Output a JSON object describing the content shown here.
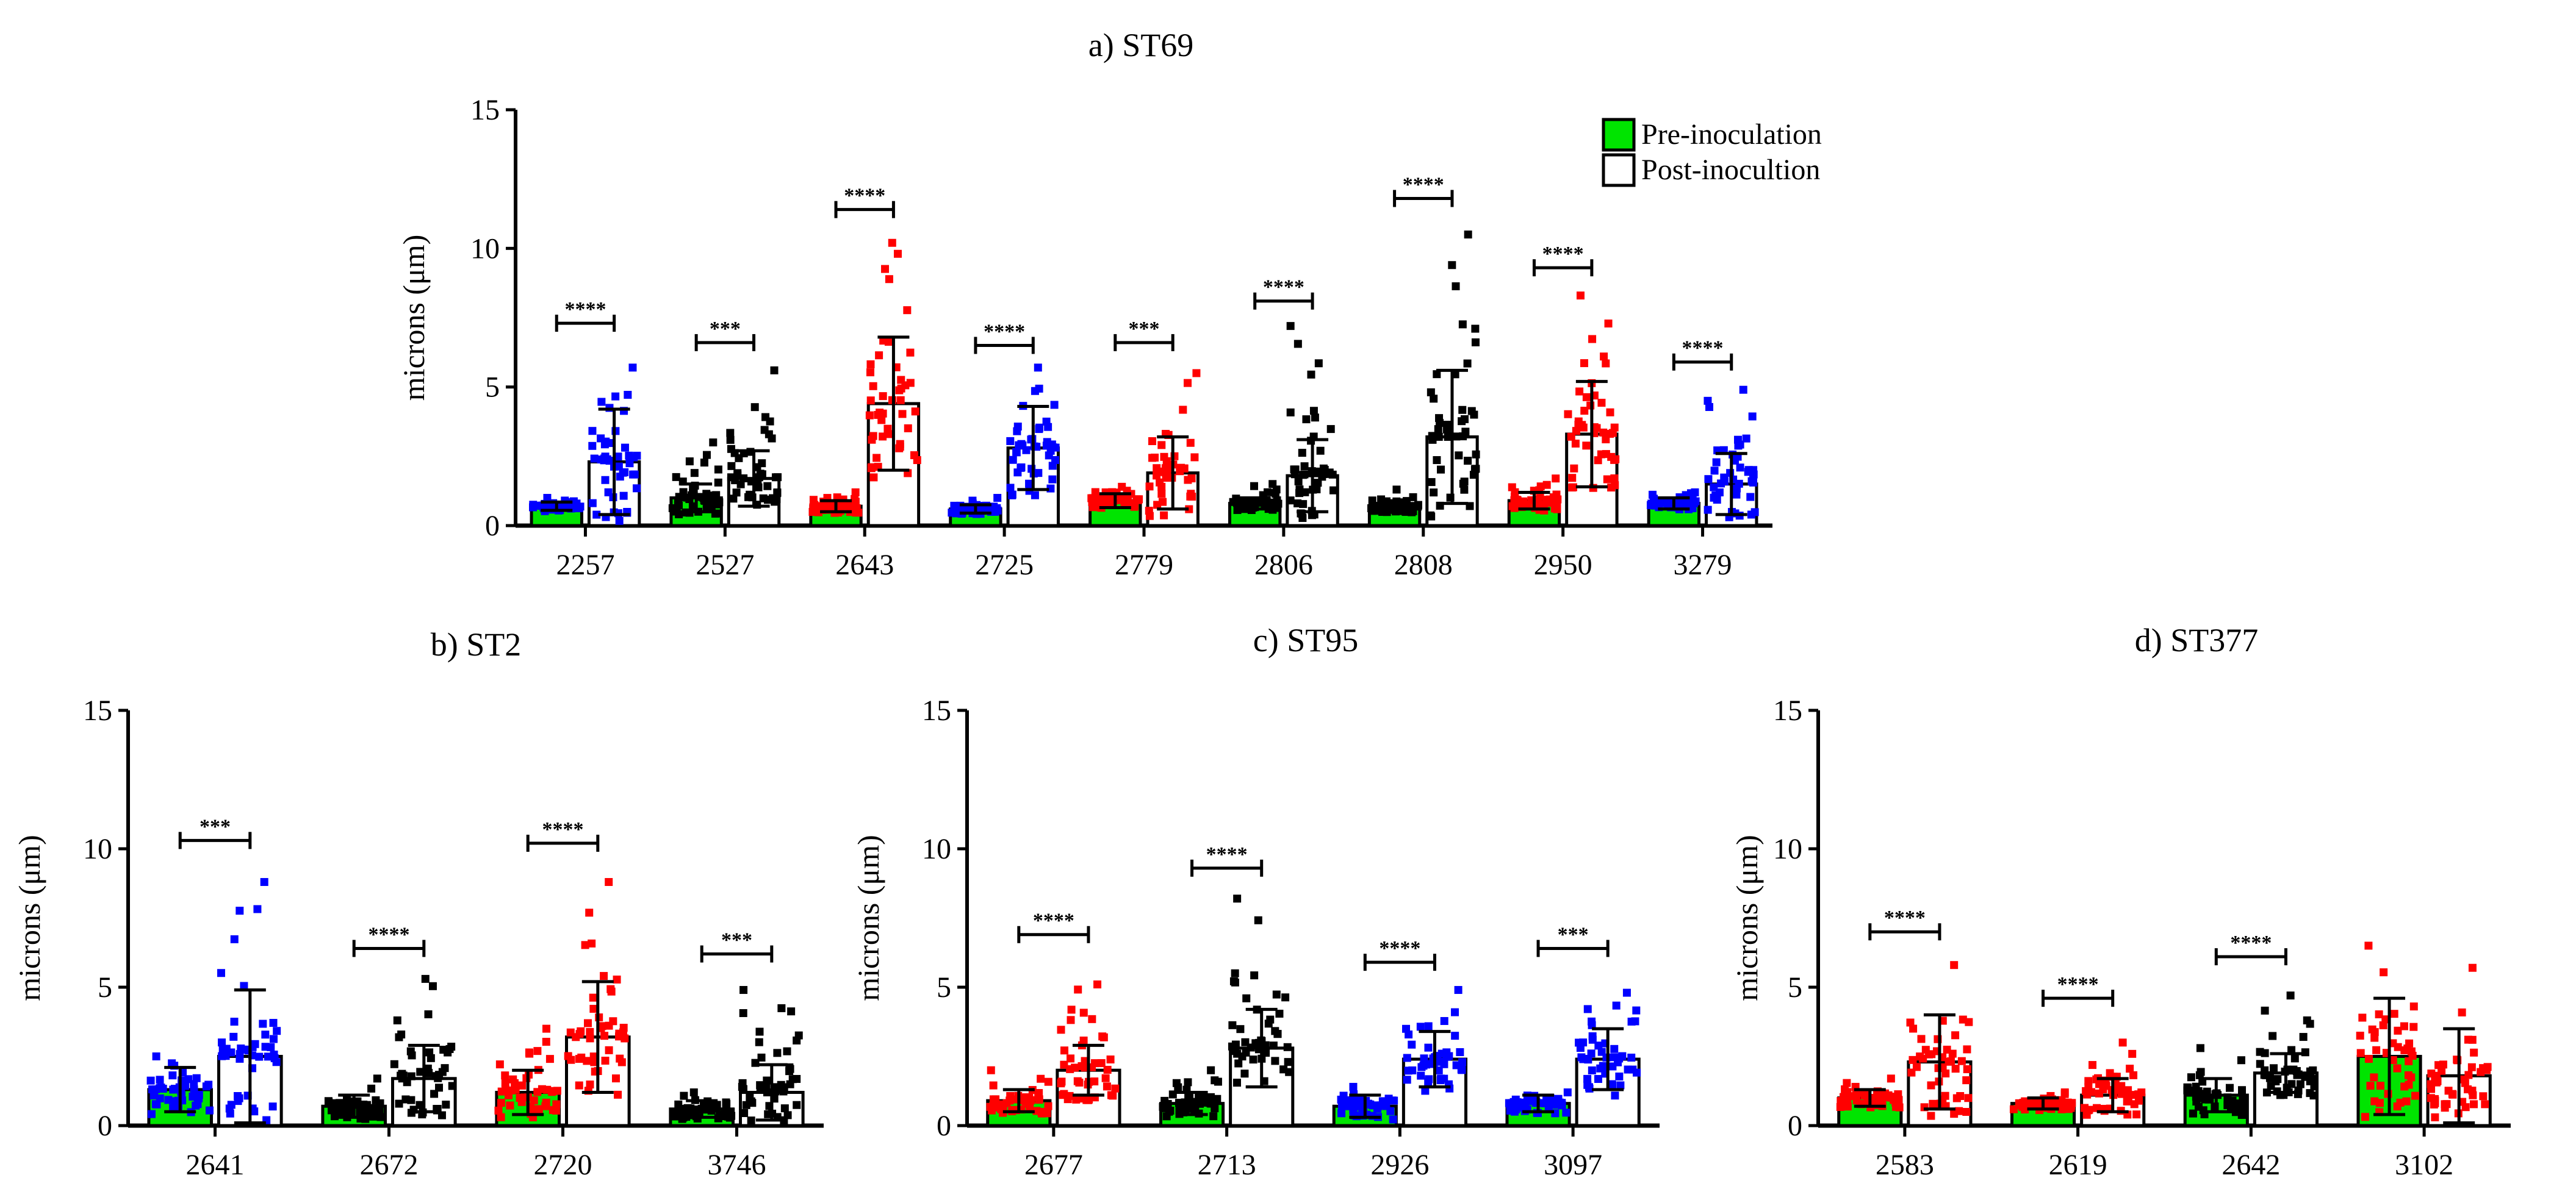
{
  "legend": {
    "items": [
      {
        "label": "Pre-inoculation",
        "color": "#00e400"
      },
      {
        "label": "Post-inocultion",
        "color": "#ffffff"
      }
    ],
    "position": "top-right of panel a"
  },
  "chart_data": [
    {
      "type": "bar",
      "title": "a) ST69",
      "ylabel": "microns (μm)",
      "ylim": [
        0,
        15
      ],
      "yticks": [
        0,
        5,
        10,
        15
      ],
      "categories": [
        "2257",
        "2527",
        "2643",
        "2725",
        "2779",
        "2806",
        "2808",
        "2950",
        "3279"
      ],
      "point_colors": [
        "#0000ff",
        "#000000",
        "#ff0000",
        "#0000ff",
        "#ff0000",
        "#000000",
        "#000000",
        "#ff0000",
        "#0000ff"
      ],
      "series": [
        {
          "name": "Pre-inoculation",
          "values": [
            0.7,
            1.0,
            0.7,
            0.6,
            0.9,
            0.8,
            0.7,
            0.9,
            0.8
          ],
          "sd": [
            0.15,
            0.5,
            0.2,
            0.15,
            0.25,
            0.2,
            0.2,
            0.3,
            0.2
          ],
          "max": [
            1.0,
            3.0,
            1.2,
            1.0,
            1.4,
            1.5,
            1.3,
            1.7,
            1.2
          ]
        },
        {
          "name": "Post-inocultion",
          "values": [
            2.3,
            1.7,
            4.4,
            2.8,
            1.9,
            1.8,
            3.2,
            3.3,
            1.5
          ],
          "sd": [
            1.9,
            1.0,
            2.4,
            1.5,
            1.3,
            1.3,
            2.4,
            1.9,
            1.1
          ],
          "max": [
            5.7,
            5.6,
            10.2,
            5.7,
            5.5,
            7.2,
            10.5,
            8.3,
            4.9
          ]
        }
      ],
      "significance": [
        "****",
        "***",
        "****",
        "****",
        "***",
        "****",
        "****",
        "****",
        "****"
      ],
      "sig_y": [
        7.3,
        6.6,
        11.4,
        6.5,
        6.6,
        8.1,
        11.8,
        9.3,
        5.9
      ]
    },
    {
      "type": "bar",
      "title": "b) ST2",
      "ylabel": "microns (μm)",
      "ylim": [
        0,
        15
      ],
      "yticks": [
        0,
        5,
        10,
        15
      ],
      "categories": [
        "2641",
        "2672",
        "2720",
        "3746"
      ],
      "point_colors": [
        "#0000ff",
        "#000000",
        "#ff0000",
        "#000000"
      ],
      "series": [
        {
          "name": "Pre-inoculation",
          "values": [
            1.3,
            0.7,
            1.2,
            0.6
          ],
          "sd": [
            0.8,
            0.4,
            0.8,
            0.3
          ],
          "max": [
            2.5,
            1.7,
            3.5,
            1.2
          ]
        },
        {
          "name": "Post-inocultion",
          "values": [
            2.5,
            1.7,
            3.2,
            1.2
          ],
          "sd": [
            2.4,
            1.2,
            2.0,
            1.0
          ],
          "max": [
            8.8,
            5.3,
            8.8,
            4.9
          ]
        }
      ],
      "significance": [
        "***",
        "****",
        "****",
        "***"
      ],
      "sig_y": [
        10.3,
        6.4,
        10.2,
        6.2
      ]
    },
    {
      "type": "bar",
      "title": "c)  ST95",
      "ylabel": "microns (μm)",
      "ylim": [
        0,
        15
      ],
      "yticks": [
        0,
        5,
        10,
        15
      ],
      "categories": [
        "2677",
        "2713",
        "2926",
        "3097"
      ],
      "point_colors": [
        "#ff0000",
        "#000000",
        "#0000ff",
        "#0000ff"
      ],
      "series": [
        {
          "name": "Pre-inoculation",
          "values": [
            0.9,
            0.8,
            0.7,
            0.8
          ],
          "sd": [
            0.4,
            0.4,
            0.4,
            0.3
          ],
          "max": [
            2.0,
            2.0,
            1.4,
            1.2
          ]
        },
        {
          "name": "Post-inocultion",
          "values": [
            2.0,
            2.8,
            2.4,
            2.4
          ],
          "sd": [
            0.9,
            1.4,
            1.0,
            1.1
          ],
          "max": [
            5.1,
            8.2,
            4.9,
            4.8
          ]
        }
      ],
      "significance": [
        "****",
        "****",
        "****",
        "***"
      ],
      "sig_y": [
        6.9,
        9.3,
        5.9,
        6.4
      ]
    },
    {
      "type": "bar",
      "title": "d) ST377",
      "ylabel": "microns (μm)",
      "ylim": [
        0,
        15
      ],
      "yticks": [
        0,
        5,
        10,
        15
      ],
      "categories": [
        "2583",
        "2619",
        "2642",
        "3102"
      ],
      "point_colors": [
        "#ff0000",
        "#ff0000",
        "#000000",
        "#ff0000"
      ],
      "series": [
        {
          "name": "Pre-inoculation",
          "values": [
            1.0,
            0.8,
            1.1,
            2.5
          ],
          "sd": [
            0.3,
            0.2,
            0.6,
            2.1
          ],
          "max": [
            1.7,
            1.2,
            2.8,
            6.5
          ]
        },
        {
          "name": "Post-inocultion",
          "values": [
            2.3,
            1.1,
            1.9,
            1.8
          ],
          "sd": [
            1.7,
            0.6,
            0.7,
            1.7
          ],
          "max": [
            5.8,
            3.0,
            4.7,
            5.7
          ]
        }
      ],
      "significance": [
        "****",
        "****",
        "****",
        ""
      ],
      "sig_y": [
        7.0,
        4.6,
        6.1,
        0
      ]
    }
  ]
}
